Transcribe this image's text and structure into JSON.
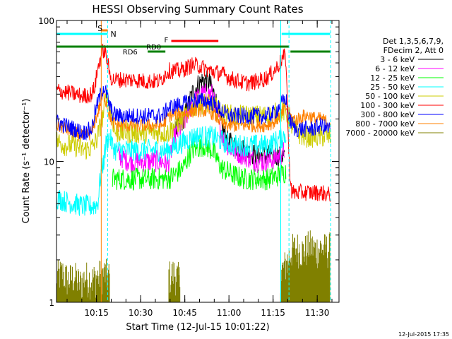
{
  "chart_data": {
    "type": "line",
    "title": "HESSI Observing Summary Count Rates",
    "xlabel": "Start Time (12-Jul-15 10:01:22)",
    "ylabel": "Count Rate (s⁻¹ detector⁻¹)",
    "yscale": "log",
    "ylim": [
      1,
      100
    ],
    "xlim_minutes": [
      0,
      96
    ],
    "x_ticks": [
      {
        "t": 13.6,
        "label": "10:15"
      },
      {
        "t": 28.6,
        "label": "10:30"
      },
      {
        "t": 43.6,
        "label": "10:45"
      },
      {
        "t": 58.6,
        "label": "11:00"
      },
      {
        "t": 73.6,
        "label": "11:15"
      },
      {
        "t": 88.6,
        "label": "11:30"
      }
    ],
    "y_ticks": [
      {
        "v": 1,
        "label": "1"
      },
      {
        "v": 10,
        "label": "10"
      },
      {
        "v": 100,
        "label": "100"
      }
    ],
    "legend_header": [
      "Det 1,3,5,6,7,9,",
      "FDecim 2, Att 0"
    ],
    "series": [
      {
        "name": "3 - 6 keV",
        "color": "#000000",
        "noise": 0.08,
        "points": [
          [
            40,
            16
          ],
          [
            42,
            18
          ],
          [
            44,
            22
          ],
          [
            46,
            30
          ],
          [
            48,
            35
          ],
          [
            50,
            38
          ],
          [
            52,
            36
          ],
          [
            54,
            28
          ],
          [
            56,
            18
          ],
          [
            58,
            14
          ],
          [
            60,
            13
          ],
          [
            64,
            12
          ],
          [
            68,
            11
          ],
          [
            72,
            11
          ],
          [
            76,
            11
          ],
          [
            77.5,
            11
          ]
        ]
      },
      {
        "name": "6 - 12 keV",
        "color": "#ff00ff",
        "noise": 0.08,
        "points": [
          [
            21,
            11
          ],
          [
            25,
            10
          ],
          [
            28,
            10
          ],
          [
            32,
            10
          ],
          [
            36,
            10
          ],
          [
            38,
            9.5
          ],
          [
            40,
            15
          ],
          [
            43,
            18
          ],
          [
            46,
            26
          ],
          [
            50,
            30
          ],
          [
            53,
            30
          ],
          [
            55,
            20
          ],
          [
            57,
            14
          ],
          [
            60,
            12
          ],
          [
            64,
            11
          ],
          [
            68,
            10
          ],
          [
            72,
            10
          ],
          [
            76,
            11
          ],
          [
            77.5,
            12
          ]
        ]
      },
      {
        "name": "12 - 25 keV",
        "color": "#00ff00",
        "noise": 0.08,
        "points": [
          [
            19,
            7.5
          ],
          [
            22,
            7.5
          ],
          [
            26,
            7.5
          ],
          [
            30,
            7.5
          ],
          [
            34,
            7.5
          ],
          [
            38,
            7.5
          ],
          [
            40,
            8
          ],
          [
            43,
            9
          ],
          [
            46,
            12
          ],
          [
            50,
            13
          ],
          [
            53,
            12
          ],
          [
            56,
            9
          ],
          [
            60,
            8
          ],
          [
            64,
            7.5
          ],
          [
            68,
            7.5
          ],
          [
            72,
            7.5
          ],
          [
            76,
            8
          ],
          [
            78,
            8.5
          ]
        ]
      },
      {
        "name": "25 - 50 keV",
        "color": "#00ffff",
        "noise": 0.08,
        "points": [
          [
            0,
            5.5
          ],
          [
            3,
            5.2
          ],
          [
            6,
            5.0
          ],
          [
            9,
            4.8
          ],
          [
            12,
            4.8
          ],
          [
            14,
            5
          ],
          [
            15,
            8
          ],
          [
            16,
            10
          ],
          [
            17,
            14
          ],
          [
            18,
            15
          ],
          [
            19,
            13
          ],
          [
            20,
            12
          ],
          [
            23,
            12
          ],
          [
            27,
            12
          ],
          [
            31,
            12
          ],
          [
            35,
            12
          ],
          [
            37.5,
            12
          ],
          [
            38,
            12
          ],
          [
            41,
            13
          ],
          [
            44,
            14
          ],
          [
            47,
            15
          ],
          [
            50,
            15
          ],
          [
            53,
            15
          ],
          [
            56,
            14
          ],
          [
            60,
            13
          ],
          [
            64,
            13
          ],
          [
            68,
            13
          ],
          [
            72,
            13
          ],
          [
            75,
            14
          ],
          [
            77,
            15
          ],
          [
            78,
            16
          ]
        ]
      },
      {
        "name": "50 - 100 keV",
        "color": "#cccc00",
        "noise": 0.08,
        "points": [
          [
            0,
            14
          ],
          [
            3,
            13
          ],
          [
            6,
            13
          ],
          [
            9,
            12
          ],
          [
            12,
            12.5
          ],
          [
            13.5,
            14
          ],
          [
            15,
            18
          ],
          [
            16,
            22
          ],
          [
            17,
            30
          ],
          [
            18,
            25
          ],
          [
            19,
            20
          ],
          [
            20,
            16
          ],
          [
            23,
            16
          ],
          [
            27,
            16
          ],
          [
            31,
            16
          ],
          [
            34,
            16
          ],
          [
            36,
            16
          ],
          [
            38,
            16
          ],
          [
            40,
            18
          ],
          [
            43,
            20
          ],
          [
            46,
            24
          ],
          [
            49,
            26
          ],
          [
            52,
            25
          ],
          [
            54,
            24
          ],
          [
            56,
            22
          ],
          [
            60,
            21
          ],
          [
            64,
            21
          ],
          [
            68,
            21
          ],
          [
            72,
            21
          ],
          [
            75,
            22
          ],
          [
            77,
            23
          ],
          [
            78,
            22
          ],
          [
            79,
            20
          ],
          [
            80,
            18
          ],
          [
            82,
            16
          ],
          [
            84,
            15
          ],
          [
            86,
            15
          ],
          [
            88,
            15
          ],
          [
            90,
            15
          ],
          [
            92,
            15
          ],
          [
            93,
            15
          ]
        ]
      },
      {
        "name": "100 - 300 keV",
        "color": "#ff0000",
        "noise": 0.06,
        "points": [
          [
            0,
            32
          ],
          [
            3,
            31
          ],
          [
            6,
            30
          ],
          [
            9,
            29
          ],
          [
            12,
            30
          ],
          [
            13,
            34
          ],
          [
            14,
            45
          ],
          [
            15,
            55
          ],
          [
            16,
            62
          ],
          [
            17,
            55
          ],
          [
            18,
            42
          ],
          [
            19,
            38
          ],
          [
            21,
            38
          ],
          [
            24,
            38
          ],
          [
            27,
            38
          ],
          [
            30,
            37
          ],
          [
            32,
            37
          ],
          [
            35,
            37
          ],
          [
            38,
            44
          ],
          [
            40,
            44
          ],
          [
            42,
            44
          ],
          [
            44,
            46
          ],
          [
            46,
            48
          ],
          [
            48,
            48
          ],
          [
            50,
            46
          ],
          [
            52,
            44
          ],
          [
            54,
            43
          ],
          [
            56,
            42
          ],
          [
            58,
            40
          ],
          [
            60,
            38
          ],
          [
            62,
            37
          ],
          [
            64,
            36
          ],
          [
            66,
            36
          ],
          [
            68,
            37
          ],
          [
            70,
            38
          ],
          [
            72,
            40
          ],
          [
            74,
            44
          ],
          [
            76,
            50
          ],
          [
            77.5,
            56
          ],
          [
            78,
            52
          ],
          [
            79,
            10
          ],
          [
            80,
            6
          ],
          [
            82,
            6
          ],
          [
            84,
            6
          ],
          [
            86,
            6
          ],
          [
            88,
            6
          ],
          [
            90,
            6
          ],
          [
            92,
            5.8
          ],
          [
            93,
            5.8
          ]
        ]
      },
      {
        "name": "300 - 800 keV",
        "color": "#0000ff",
        "noise": 0.06,
        "points": [
          [
            0,
            19
          ],
          [
            3,
            18
          ],
          [
            6,
            17
          ],
          [
            9,
            16
          ],
          [
            12,
            17
          ],
          [
            13,
            22
          ],
          [
            14,
            26
          ],
          [
            15,
            30
          ],
          [
            16,
            34
          ],
          [
            17,
            30
          ],
          [
            18,
            25
          ],
          [
            19,
            22
          ],
          [
            21,
            21
          ],
          [
            24,
            21
          ],
          [
            27,
            21
          ],
          [
            30,
            21
          ],
          [
            33,
            21
          ],
          [
            36,
            21
          ],
          [
            38,
            24
          ],
          [
            41,
            25
          ],
          [
            44,
            26
          ],
          [
            47,
            27
          ],
          [
            50,
            27
          ],
          [
            53,
            26
          ],
          [
            55,
            24
          ],
          [
            57,
            22
          ],
          [
            59,
            21
          ],
          [
            62,
            21
          ],
          [
            65,
            21
          ],
          [
            68,
            21
          ],
          [
            71,
            21
          ],
          [
            74,
            22
          ],
          [
            76,
            25
          ],
          [
            78,
            28
          ],
          [
            79,
            20
          ],
          [
            81,
            17
          ],
          [
            84,
            17
          ],
          [
            87,
            17
          ],
          [
            90,
            18
          ],
          [
            92,
            17
          ],
          [
            93,
            17
          ]
        ]
      },
      {
        "name": "800 - 7000 keV",
        "color": "#ff8000",
        "noise": 0.05,
        "points": [
          [
            0,
            18
          ],
          [
            3,
            17
          ],
          [
            6,
            16
          ],
          [
            9,
            15
          ],
          [
            12,
            16
          ],
          [
            13,
            19
          ],
          [
            14,
            22
          ],
          [
            15,
            26
          ],
          [
            16,
            30
          ],
          [
            17,
            26
          ],
          [
            18,
            21
          ],
          [
            19,
            19
          ],
          [
            21,
            18
          ],
          [
            24,
            18
          ],
          [
            27,
            18
          ],
          [
            30,
            18
          ],
          [
            33,
            18
          ],
          [
            36,
            18
          ],
          [
            38,
            21
          ],
          [
            41,
            22
          ],
          [
            44,
            22
          ],
          [
            47,
            23
          ],
          [
            50,
            23
          ],
          [
            53,
            22
          ],
          [
            55,
            20
          ],
          [
            57,
            18
          ],
          [
            59,
            18
          ],
          [
            62,
            18
          ],
          [
            65,
            18
          ],
          [
            68,
            18
          ],
          [
            71,
            18
          ],
          [
            74,
            19
          ],
          [
            76,
            21
          ],
          [
            78,
            24
          ],
          [
            79,
            22
          ],
          [
            80,
            20
          ],
          [
            82,
            20
          ],
          [
            84,
            21
          ],
          [
            86,
            21
          ],
          [
            88,
            20
          ],
          [
            90,
            20
          ],
          [
            92,
            19
          ],
          [
            93,
            19
          ]
        ]
      },
      {
        "name": "7000 - 20000 keV",
        "color": "#808000",
        "noise": 0.0,
        "points": [
          [
            0,
            1.8
          ],
          [
            2,
            1.9
          ],
          [
            4,
            1.7
          ],
          [
            6,
            1.8
          ],
          [
            8,
            1.6
          ],
          [
            10,
            1.8
          ],
          [
            12,
            1.7
          ],
          [
            14,
            1.8
          ],
          [
            16,
            1.9
          ],
          [
            18,
            1.8
          ],
          [
            38,
            1.8
          ],
          [
            40,
            1.9
          ],
          [
            42,
            1.7
          ],
          [
            76,
            1.9
          ],
          [
            78,
            2.2
          ],
          [
            80,
            2.8
          ],
          [
            82,
            2.9
          ],
          [
            84,
            2.7
          ],
          [
            86,
            3.0
          ],
          [
            88,
            2.8
          ],
          [
            90,
            2.9
          ],
          [
            92,
            2.8
          ],
          [
            93,
            2.9
          ]
        ]
      }
    ],
    "annotations": {
      "S": {
        "label": "S",
        "t_start": 15.4,
        "t_end": 17.4,
        "color": "#ff8000"
      },
      "N": {
        "label": "N",
        "color": "#00ffff",
        "segments": [
          [
            0,
            17.4
          ],
          [
            76.5,
            93
          ]
        ]
      },
      "RD0": {
        "label": "RD0",
        "t_start": 0,
        "t_end": 78.9,
        "color": "#008000"
      },
      "RD6": {
        "label": "RD6",
        "t_start": 31,
        "t_end": 37,
        "color": "#008000"
      },
      "RD6b": {
        "t_start": 79.5,
        "t_end": 93,
        "color": "#008000"
      },
      "F": {
        "label": "F",
        "t_start": 39,
        "t_end": 55,
        "color": "#ff0000"
      },
      "vlines": [
        {
          "t": 0,
          "color": "#00ffff",
          "dashed": false
        },
        {
          "t": 15.2,
          "color": "#ff8000",
          "dashed": false
        },
        {
          "t": 17.4,
          "color": "#00ffff",
          "dashed": true
        },
        {
          "t": 76.2,
          "color": "#00ffff",
          "dashed": false
        },
        {
          "t": 79.0,
          "color": "#00ffff",
          "dashed": true
        },
        {
          "t": 93.2,
          "color": "#00ffff",
          "dashed": true
        }
      ]
    },
    "footer_date": "12-Jul-2015 17:35"
  }
}
